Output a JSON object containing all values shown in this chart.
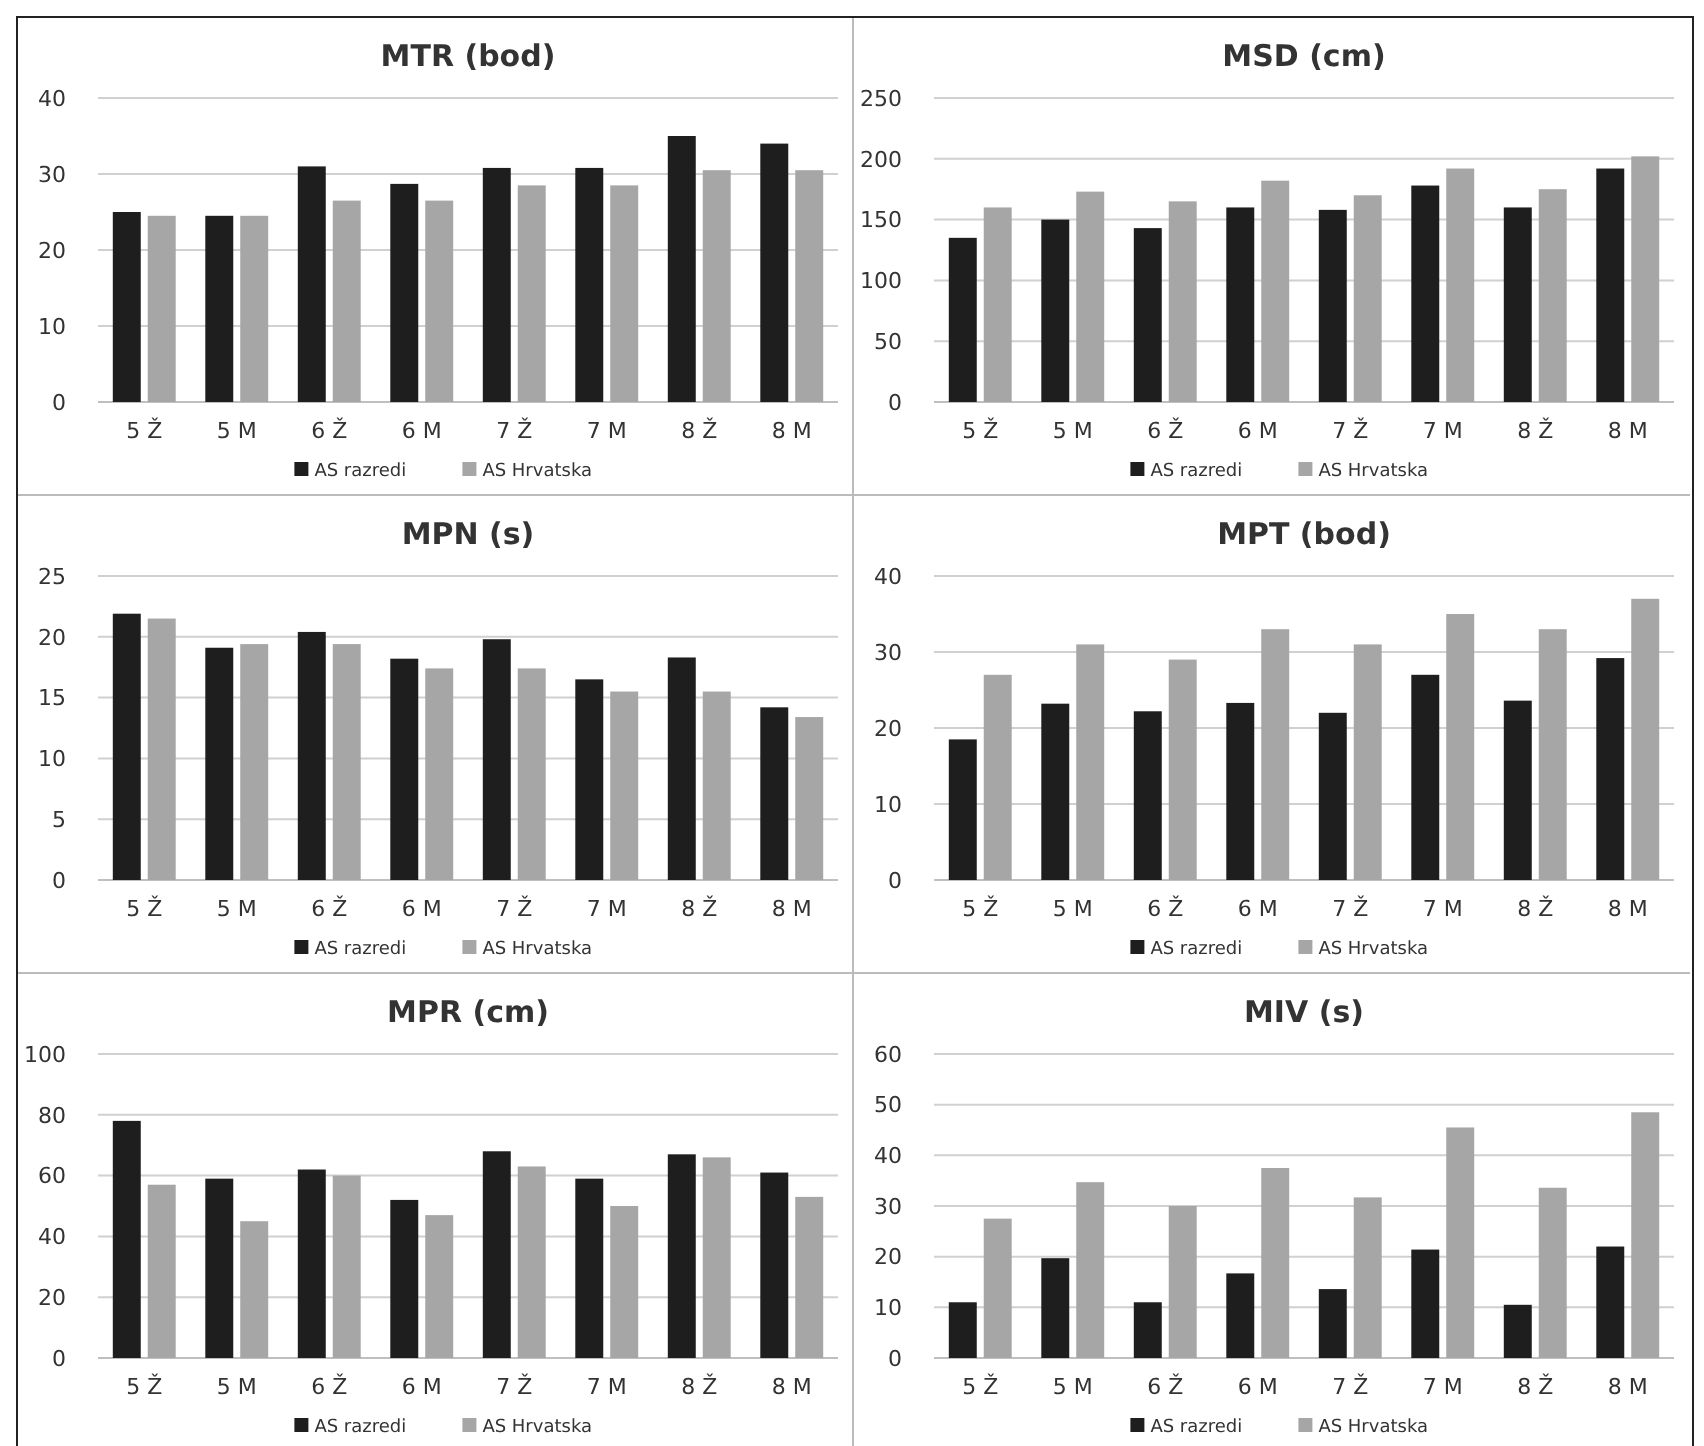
{
  "chart_data": [
    {
      "type": "bar",
      "title": "MTR (bod)",
      "categories": [
        "5 Ž",
        "5 M",
        "6 Ž",
        "6 M",
        "7 Ž",
        "7 M",
        "8 Ž",
        "8 M"
      ],
      "ylim": [
        0,
        40
      ],
      "yticks": [
        0,
        10,
        20,
        30,
        40
      ],
      "grid": "y",
      "legend": "bottom",
      "series": [
        {
          "name": "AS razredi",
          "color": "#1e1e1e",
          "values": [
            25,
            24.5,
            31,
            28.7,
            30.8,
            30.8,
            35,
            34
          ]
        },
        {
          "name": "AS Hrvatska",
          "color": "#a6a6a6",
          "values": [
            24.5,
            24.5,
            26.5,
            26.5,
            28.5,
            28.5,
            30.5,
            30.5
          ]
        }
      ]
    },
    {
      "type": "bar",
      "title": "MSD (cm)",
      "categories": [
        "5 Ž",
        "5 M",
        "6 Ž",
        "6 M",
        "7 Ž",
        "7 M",
        "8 Ž",
        "8 M"
      ],
      "ylim": [
        0,
        250
      ],
      "yticks": [
        0,
        50,
        100,
        150,
        200,
        250
      ],
      "grid": "y",
      "legend": "bottom",
      "series": [
        {
          "name": "AS razredi",
          "color": "#1e1e1e",
          "values": [
            135,
            150,
            143,
            160,
            158,
            178,
            160,
            192
          ]
        },
        {
          "name": "AS Hrvatska",
          "color": "#a6a6a6",
          "values": [
            160,
            173,
            165,
            182,
            170,
            192,
            175,
            202
          ]
        }
      ]
    },
    {
      "type": "bar",
      "title": "MPN (s)",
      "categories": [
        "5 Ž",
        "5 M",
        "6 Ž",
        "6 M",
        "7 Ž",
        "7 M",
        "8 Ž",
        "8 M"
      ],
      "ylim": [
        0,
        25
      ],
      "yticks": [
        0,
        5,
        10,
        15,
        20,
        25
      ],
      "grid": "y",
      "legend": "bottom",
      "series": [
        {
          "name": "AS razredi",
          "color": "#1e1e1e",
          "values": [
            21.9,
            19.1,
            20.4,
            18.2,
            19.8,
            16.5,
            18.3,
            14.2
          ]
        },
        {
          "name": "AS Hrvatska",
          "color": "#a6a6a6",
          "values": [
            21.5,
            19.4,
            19.4,
            17.4,
            17.4,
            15.5,
            15.5,
            13.4
          ]
        }
      ]
    },
    {
      "type": "bar",
      "title": "MPT (bod)",
      "categories": [
        "5 Ž",
        "5 M",
        "6 Ž",
        "6 M",
        "7 Ž",
        "7 M",
        "8 Ž",
        "8 M"
      ],
      "ylim": [
        0,
        40
      ],
      "yticks": [
        0,
        10,
        20,
        30,
        40
      ],
      "grid": "y",
      "legend": "bottom",
      "series": [
        {
          "name": "AS razredi",
          "color": "#1e1e1e",
          "values": [
            18.5,
            23.2,
            22.2,
            23.3,
            22,
            27,
            23.6,
            29.2
          ]
        },
        {
          "name": "AS Hrvatska",
          "color": "#a6a6a6",
          "values": [
            27,
            31,
            29,
            33,
            31,
            35,
            33,
            37
          ]
        }
      ]
    },
    {
      "type": "bar",
      "title": "MPR (cm)",
      "categories": [
        "5 Ž",
        "5 M",
        "6 Ž",
        "6 M",
        "7 Ž",
        "7 M",
        "8 Ž",
        "8 M"
      ],
      "ylim": [
        0,
        100
      ],
      "yticks": [
        0,
        20,
        40,
        60,
        80,
        100
      ],
      "grid": "y",
      "legend": "bottom",
      "series": [
        {
          "name": "AS razredi",
          "color": "#1e1e1e",
          "values": [
            78,
            59,
            62,
            52,
            68,
            59,
            67,
            61
          ]
        },
        {
          "name": "AS Hrvatska",
          "color": "#a6a6a6",
          "values": [
            57,
            45,
            60,
            47,
            63,
            50,
            66,
            53
          ]
        }
      ]
    },
    {
      "type": "bar",
      "title": "MIV (s)",
      "categories": [
        "5 Ž",
        "5 M",
        "6 Ž",
        "6 M",
        "7 Ž",
        "7 M",
        "8 Ž",
        "8 M"
      ],
      "ylim": [
        0,
        60
      ],
      "yticks": [
        0,
        10,
        20,
        30,
        40,
        50,
        60
      ],
      "grid": "y",
      "legend": "bottom",
      "series": [
        {
          "name": "AS razredi",
          "color": "#1e1e1e",
          "values": [
            11,
            19.7,
            11,
            16.7,
            13.6,
            21.4,
            10.5,
            22
          ]
        },
        {
          "name": "AS Hrvatska",
          "color": "#a6a6a6",
          "values": [
            27.5,
            34.7,
            30,
            37.5,
            31.7,
            45.5,
            33.6,
            48.5
          ]
        }
      ]
    }
  ]
}
